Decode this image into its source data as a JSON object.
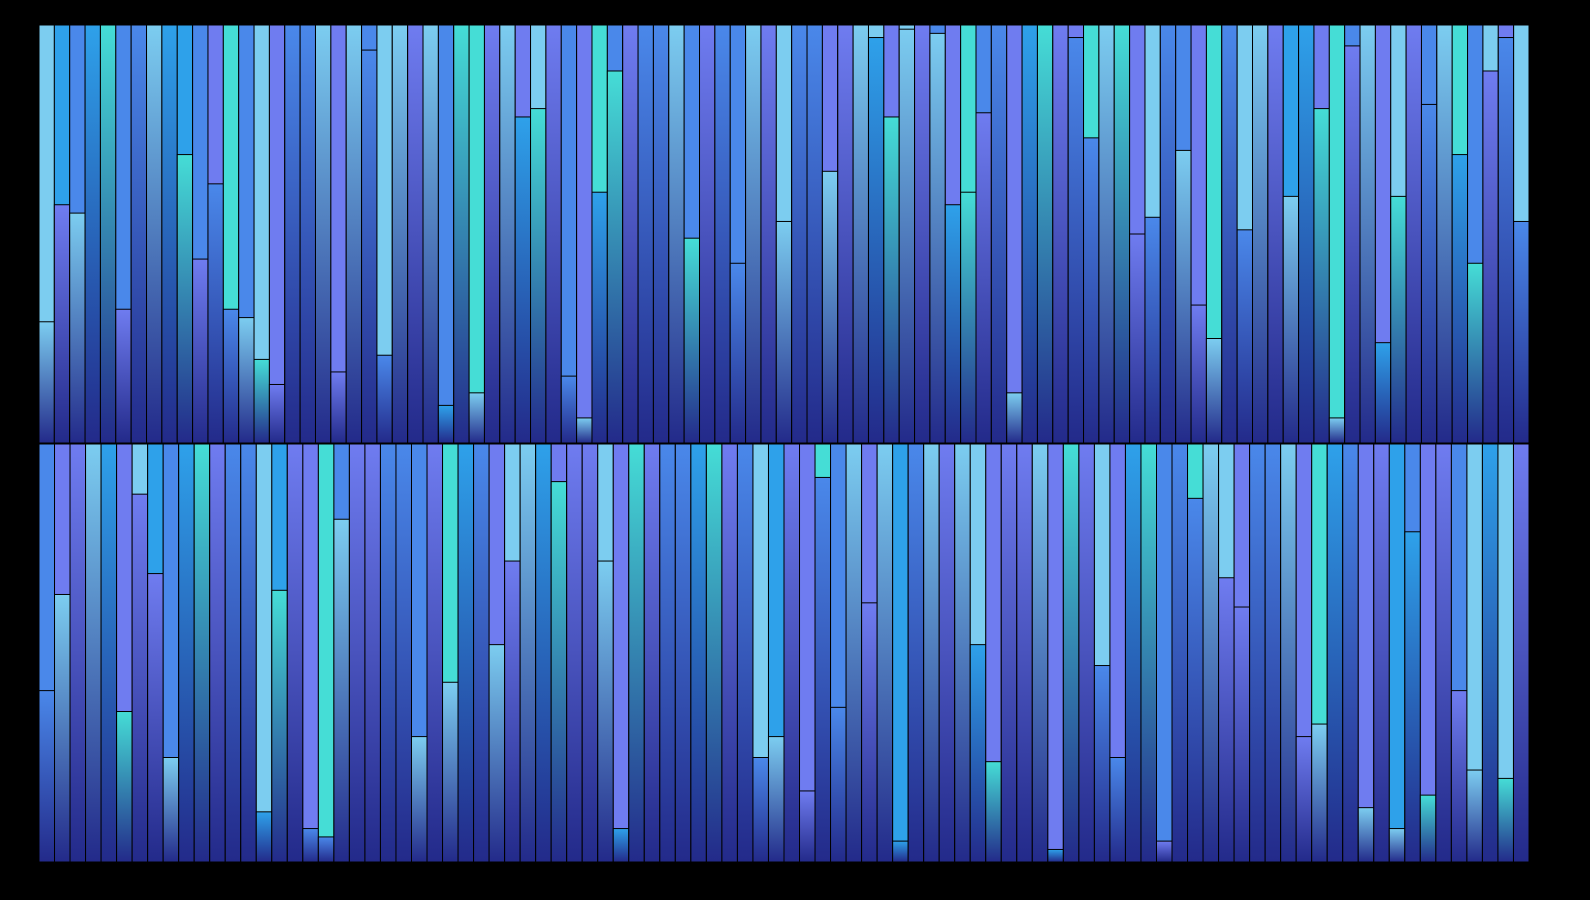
{
  "palette": {
    "background": "#000000",
    "sky": "#7ccdf0",
    "azure": "#2ea1ea",
    "cornflower": "#4a88ea",
    "periwinkle": "#6f7cf0",
    "turquoise": "#45ddd6",
    "navy": "#232a8a",
    "outline": "#0a0f2e"
  },
  "panels": [
    {
      "name": "top-strip-panel",
      "strips": [
        0.29,
        0.57,
        0.55,
        1,
        1,
        0.32,
        1,
        1,
        1,
        0.69,
        0.44,
        0.62,
        0.32,
        0.3,
        0.2,
        0.14,
        1,
        1,
        1,
        0.17,
        1,
        0.94,
        0.21,
        1,
        1,
        1,
        0.09,
        1,
        0.12,
        1,
        1,
        0.78,
        0.8,
        1,
        0.16,
        0.06,
        0.6,
        0.89,
        1,
        1,
        1,
        1,
        0.49,
        1,
        1,
        0.43,
        1,
        1,
        0.53,
        1,
        1,
        0.65,
        1,
        1,
        0.97,
        0.78,
        0.99,
        1,
        0.98,
        0.57,
        0.6,
        0.79,
        1,
        0.12,
        1,
        1,
        1,
        0.97,
        0.73,
        1,
        1,
        0.5,
        0.54,
        1,
        0.7,
        0.33,
        0.25,
        1,
        0.51,
        1,
        1,
        0.59,
        1,
        0.8,
        0.06,
        0.95,
        1,
        0.24,
        0.59,
        1,
        0.81,
        1,
        0.69,
        0.43,
        0.89,
        0.97,
        0.53
      ]
    },
    {
      "name": "bottom-strip-panel",
      "strips": [
        0.41,
        0.64,
        1,
        1,
        1,
        0.36,
        0.88,
        0.69,
        0.25,
        1,
        1,
        1,
        1,
        1,
        0.12,
        0.65,
        1,
        0.08,
        0.06,
        0.82,
        1,
        1,
        1,
        1,
        0.3,
        1,
        0.43,
        1,
        1,
        0.52,
        0.72,
        1,
        1,
        0.91,
        1,
        1,
        0.72,
        0.08,
        1,
        1,
        1,
        1,
        1,
        1,
        1,
        1,
        0.25,
        0.3,
        1,
        0.17,
        0.92,
        0.37,
        1,
        0.62,
        1,
        0.05,
        1,
        1,
        1,
        1,
        0.52,
        0.24,
        1,
        1,
        1,
        0.03,
        1,
        1,
        0.47,
        0.25,
        1,
        1,
        0.05,
        1,
        0.87,
        1,
        0.68,
        0.61,
        1,
        1,
        1,
        0.3,
        0.33,
        1,
        1,
        0.13,
        1,
        0.08,
        0.79,
        0.16,
        1,
        0.41,
        0.22,
        1,
        0.2,
        1
      ]
    }
  ]
}
